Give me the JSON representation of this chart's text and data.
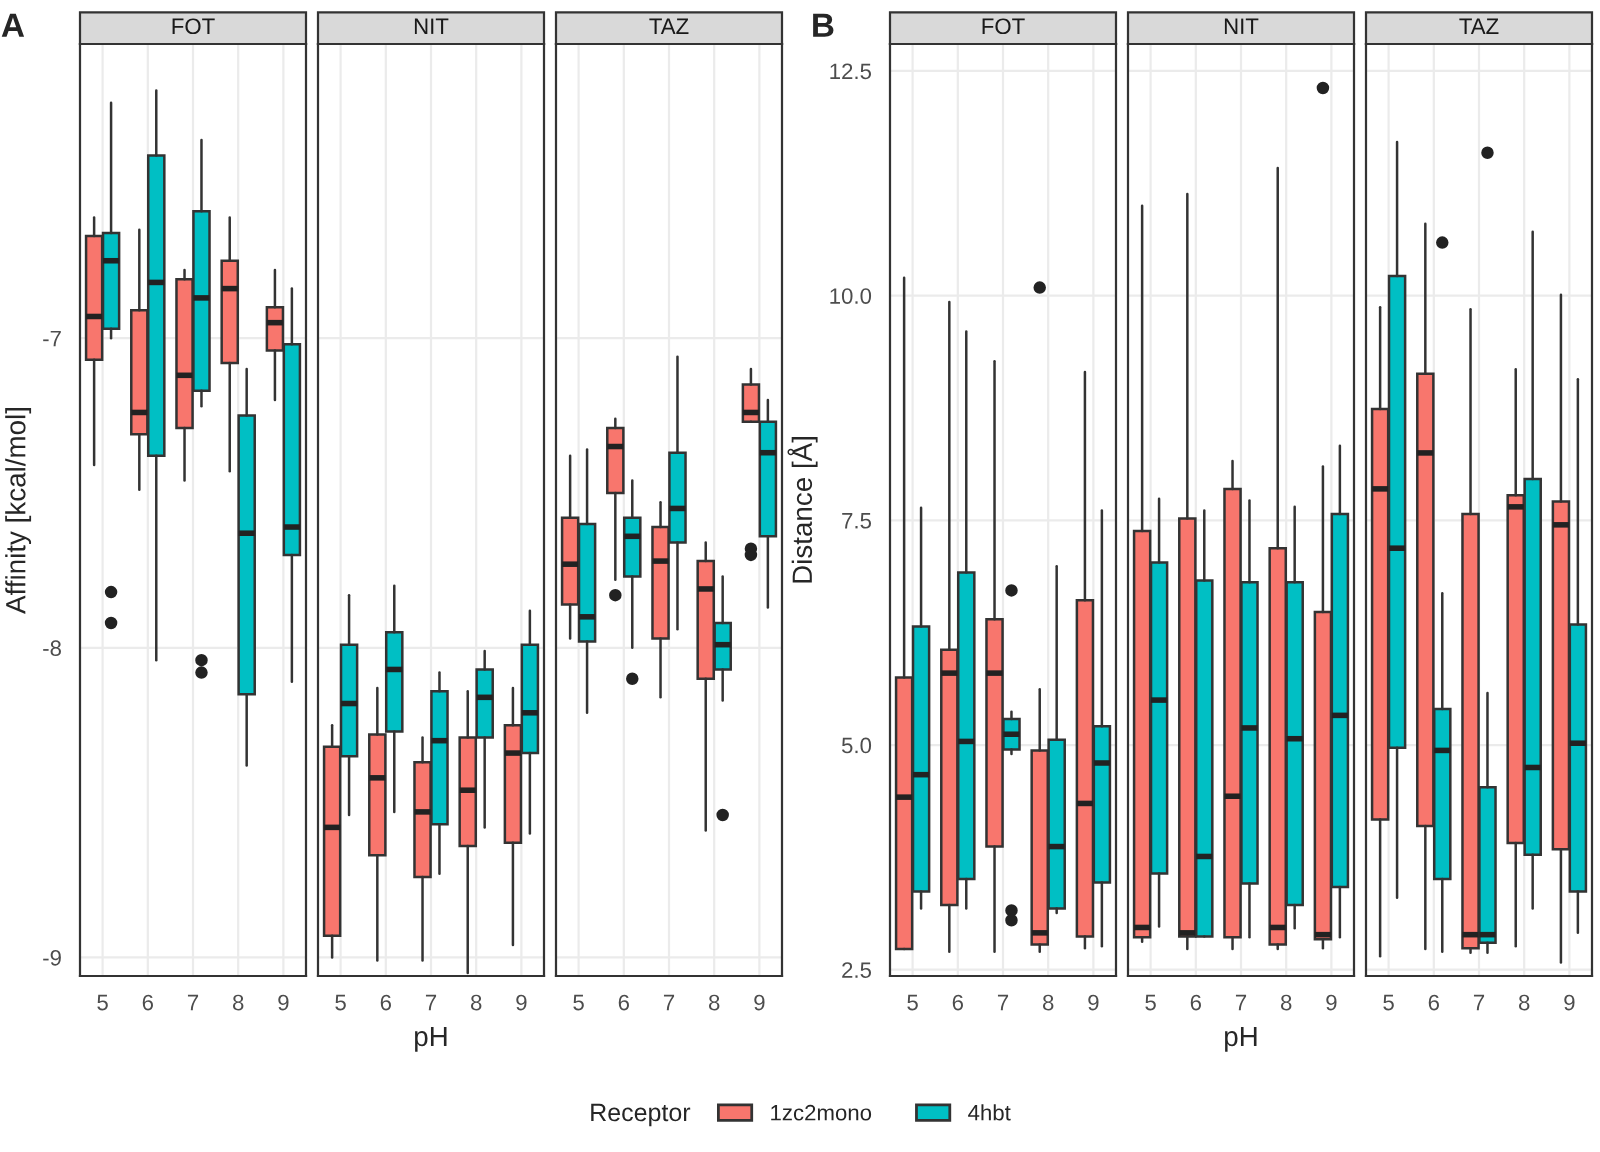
{
  "chart_data": [
    {
      "type": "box",
      "title": "FOT",
      "ylabel": "Affinity [kcal/mol]",
      "annotations": [
        "A"
      ],
      "legend": "bottom",
      "legend_title": "Receptor",
      "grid": true,
      "categories": [
        "5",
        "6",
        "7",
        "8",
        "9"
      ],
      "ylim": [
        -9.06,
        -6.05
      ],
      "yticks": [
        -9,
        -8,
        -7
      ],
      "series": [
        {
          "name": "1zc2mono",
          "color": "#f8766d",
          "boxes": [
            {
              "low": -7.41,
              "q1": -7.07,
              "median": -6.93,
              "q3": -6.67,
              "high": -6.61
            },
            {
              "low": -7.49,
              "q1": -7.31,
              "median": -7.24,
              "q3": -6.91,
              "high": -6.65
            },
            {
              "low": -7.46,
              "q1": -7.29,
              "median": -7.12,
              "q3": -6.81,
              "high": -6.78
            },
            {
              "low": -7.43,
              "q1": -7.08,
              "median": -6.84,
              "q3": -6.75,
              "high": -6.61
            },
            {
              "low": -7.2,
              "q1": -7.04,
              "median": -6.95,
              "q3": -6.9,
              "high": -6.78
            }
          ]
        },
        {
          "name": "4hbt",
          "color": "#00bfc4",
          "boxes": [
            {
              "low": -7.0,
              "q1": -6.97,
              "median": -6.75,
              "q3": -6.66,
              "high": -6.24,
              "outliers": [
                -7.82,
                -7.92
              ]
            },
            {
              "low": -8.04,
              "q1": -7.38,
              "median": -6.82,
              "q3": -6.41,
              "high": -6.2
            },
            {
              "low": -7.22,
              "q1": -7.17,
              "median": -6.87,
              "q3": -6.59,
              "high": -6.36,
              "outliers": [
                -8.04,
                -8.08
              ]
            },
            {
              "low": -8.38,
              "q1": -8.15,
              "median": -7.63,
              "q3": -7.25,
              "high": -7.1
            },
            {
              "low": -8.11,
              "q1": -7.7,
              "median": -7.61,
              "q3": -7.02,
              "high": -6.84
            }
          ]
        }
      ]
    },
    {
      "type": "box",
      "title": "NIT",
      "xlabel": "pH",
      "tick_labels": "x",
      "grid": true,
      "categories": [
        "5",
        "6",
        "7",
        "8",
        "9"
      ],
      "ylim": [
        -9.06,
        -6.05
      ],
      "yticks": [
        -9,
        -8,
        -7
      ],
      "series": [
        {
          "name": "1zc2mono",
          "color": "#f8766d",
          "boxes": [
            {
              "low": -9.0,
              "q1": -8.93,
              "median": -8.58,
              "q3": -8.32,
              "high": -8.25
            },
            {
              "low": -9.01,
              "q1": -8.67,
              "median": -8.42,
              "q3": -8.28,
              "high": -8.13
            },
            {
              "low": -9.01,
              "q1": -8.74,
              "median": -8.53,
              "q3": -8.37,
              "high": -8.29
            },
            {
              "low": -9.05,
              "q1": -8.64,
              "median": -8.46,
              "q3": -8.29,
              "high": -8.14
            },
            {
              "low": -8.96,
              "q1": -8.63,
              "median": -8.34,
              "q3": -8.25,
              "high": -8.13
            }
          ]
        },
        {
          "name": "4hbt",
          "color": "#00bfc4",
          "boxes": [
            {
              "low": -8.54,
              "q1": -8.35,
              "median": -8.18,
              "q3": -7.99,
              "high": -7.83
            },
            {
              "low": -8.53,
              "q1": -8.27,
              "median": -8.07,
              "q3": -7.95,
              "high": -7.8
            },
            {
              "low": -8.73,
              "q1": -8.57,
              "median": -8.3,
              "q3": -8.14,
              "high": -8.08
            },
            {
              "low": -8.58,
              "q1": -8.29,
              "median": -8.16,
              "q3": -8.07,
              "high": -8.01
            },
            {
              "low": -8.6,
              "q1": -8.34,
              "median": -8.21,
              "q3": -7.99,
              "high": -7.88
            }
          ]
        }
      ]
    },
    {
      "type": "box",
      "title": "TAZ",
      "tick_labels": "x",
      "grid": true,
      "categories": [
        "5",
        "6",
        "7",
        "8",
        "9"
      ],
      "ylim": [
        -9.06,
        -6.05
      ],
      "yticks": [
        -9,
        -8,
        -7
      ],
      "series": [
        {
          "name": "1zc2mono",
          "color": "#f8766d",
          "boxes": [
            {
              "low": -7.97,
              "q1": -7.86,
              "median": -7.73,
              "q3": -7.58,
              "high": -7.38
            },
            {
              "low": -7.78,
              "q1": -7.5,
              "median": -7.35,
              "q3": -7.29,
              "high": -7.26,
              "outliers": [
                -7.83
              ]
            },
            {
              "low": -8.16,
              "q1": -7.97,
              "median": -7.72,
              "q3": -7.61,
              "high": -7.53
            },
            {
              "low": -8.59,
              "q1": -8.1,
              "median": -7.81,
              "q3": -7.72,
              "high": -7.66
            },
            {
              "low": -7.27,
              "q1": -7.27,
              "median": -7.24,
              "q3": -7.15,
              "high": -7.1,
              "outliers": [
                -7.68,
                -7.7
              ]
            }
          ]
        },
        {
          "name": "4hbt",
          "color": "#00bfc4",
          "boxes": [
            {
              "low": -8.21,
              "q1": -7.98,
              "median": -7.9,
              "q3": -7.6,
              "high": -7.36
            },
            {
              "low": -8.0,
              "q1": -7.77,
              "median": -7.64,
              "q3": -7.58,
              "high": -7.46,
              "outliers": [
                -8.1
              ]
            },
            {
              "low": -7.94,
              "q1": -7.66,
              "median": -7.55,
              "q3": -7.37,
              "high": -7.06
            },
            {
              "low": -8.17,
              "q1": -8.07,
              "median": -7.99,
              "q3": -7.92,
              "high": -7.77,
              "outliers": [
                -8.54
              ]
            },
            {
              "low": -7.87,
              "q1": -7.64,
              "median": -7.37,
              "q3": -7.27,
              "high": -7.2
            }
          ]
        }
      ]
    },
    {
      "type": "box",
      "title": "FOT",
      "ylabel": "Distance [Å]",
      "annotations": [
        "B"
      ],
      "grid": true,
      "categories": [
        "5",
        "6",
        "7",
        "8",
        "9"
      ],
      "ylim": [
        2.43,
        12.8
      ],
      "yticks": [
        {
          "value": 2.5,
          "label": "2.5"
        },
        {
          "value": 5,
          "label": "5.0"
        },
        {
          "value": 7.5,
          "label": "7.5"
        },
        {
          "value": 10,
          "label": "10.0"
        },
        {
          "value": 12.5,
          "label": "12.5"
        }
      ],
      "series": [
        {
          "name": "1zc2mono",
          "color": "#f8766d",
          "boxes": [
            {
              "low": 2.73,
              "q1": 2.73,
              "median": 4.42,
              "q3": 5.75,
              "high": 10.2
            },
            {
              "low": 2.7,
              "q1": 3.22,
              "median": 5.8,
              "q3": 6.06,
              "high": 9.93
            },
            {
              "low": 2.7,
              "q1": 3.87,
              "median": 5.8,
              "q3": 6.4,
              "high": 9.27
            },
            {
              "low": 2.7,
              "q1": 2.78,
              "median": 2.91,
              "q3": 4.94,
              "high": 5.62,
              "outliers": [
                10.09
              ]
            },
            {
              "low": 2.74,
              "q1": 2.87,
              "median": 4.35,
              "q3": 6.61,
              "high": 9.15
            }
          ]
        },
        {
          "name": "4hbt",
          "color": "#00bfc4",
          "boxes": [
            {
              "low": 3.18,
              "q1": 3.37,
              "median": 4.67,
              "q3": 6.32,
              "high": 7.64
            },
            {
              "low": 3.18,
              "q1": 3.51,
              "median": 5.04,
              "q3": 6.92,
              "high": 9.6
            },
            {
              "low": 4.9,
              "q1": 4.95,
              "median": 5.12,
              "q3": 5.29,
              "high": 5.37,
              "outliers": [
                6.72,
                3.16,
                3.05
              ]
            },
            {
              "low": 3.13,
              "q1": 3.18,
              "median": 3.87,
              "q3": 5.06,
              "high": 6.99
            },
            {
              "low": 2.76,
              "q1": 3.47,
              "median": 4.8,
              "q3": 5.21,
              "high": 7.61
            }
          ]
        }
      ]
    },
    {
      "type": "box",
      "title": "NIT",
      "xlabel": "pH",
      "tick_labels": "x",
      "grid": true,
      "categories": [
        "5",
        "6",
        "7",
        "8",
        "9"
      ],
      "ylim": [
        2.43,
        12.8
      ],
      "yticks": [
        2.5,
        5,
        7.5,
        10,
        12.5
      ],
      "series": [
        {
          "name": "1zc2mono",
          "color": "#f8766d",
          "boxes": [
            {
              "low": 2.81,
              "q1": 2.86,
              "median": 2.97,
              "q3": 7.38,
              "high": 11.0
            },
            {
              "low": 2.73,
              "q1": 2.87,
              "median": 2.91,
              "q3": 7.52,
              "high": 11.13
            },
            {
              "low": 2.73,
              "q1": 2.86,
              "median": 4.43,
              "q3": 7.85,
              "high": 8.16
            },
            {
              "low": 2.73,
              "q1": 2.78,
              "median": 2.97,
              "q3": 7.19,
              "high": 11.42
            },
            {
              "low": 2.74,
              "q1": 2.84,
              "median": 2.89,
              "q3": 6.48,
              "high": 8.1,
              "outliers": [
                12.31
              ]
            }
          ]
        },
        {
          "name": "4hbt",
          "color": "#00bfc4",
          "boxes": [
            {
              "low": 2.98,
              "q1": 3.57,
              "median": 5.5,
              "q3": 7.03,
              "high": 7.74
            },
            {
              "low": 2.87,
              "q1": 2.87,
              "median": 3.76,
              "q3": 6.83,
              "high": 7.61
            },
            {
              "low": 2.86,
              "q1": 3.46,
              "median": 5.19,
              "q3": 6.81,
              "high": 7.72
            },
            {
              "low": 2.96,
              "q1": 3.22,
              "median": 5.07,
              "q3": 6.81,
              "high": 7.65
            },
            {
              "low": 2.86,
              "q1": 3.42,
              "median": 5.33,
              "q3": 7.57,
              "high": 8.33
            }
          ]
        }
      ]
    },
    {
      "type": "box",
      "title": "TAZ",
      "tick_labels": "x",
      "grid": true,
      "categories": [
        "5",
        "6",
        "7",
        "8",
        "9"
      ],
      "ylim": [
        2.43,
        12.8
      ],
      "yticks": [
        2.5,
        5,
        7.5,
        10,
        12.5
      ],
      "series": [
        {
          "name": "1zc2mono",
          "color": "#f8766d",
          "boxes": [
            {
              "low": 2.65,
              "q1": 4.17,
              "median": 7.85,
              "q3": 8.74,
              "high": 9.87
            },
            {
              "low": 2.73,
              "q1": 4.1,
              "median": 8.25,
              "q3": 9.13,
              "high": 10.8
            },
            {
              "low": 2.69,
              "q1": 2.74,
              "median": 2.89,
              "q3": 7.57,
              "high": 9.85
            },
            {
              "low": 2.76,
              "q1": 3.91,
              "median": 7.65,
              "q3": 7.78,
              "high": 9.18
            },
            {
              "low": 2.58,
              "q1": 3.84,
              "median": 7.45,
              "q3": 7.71,
              "high": 10.01
            }
          ]
        },
        {
          "name": "4hbt",
          "color": "#00bfc4",
          "boxes": [
            {
              "low": 3.3,
              "q1": 4.97,
              "median": 7.19,
              "q3": 10.22,
              "high": 11.71
            },
            {
              "low": 2.7,
              "q1": 3.51,
              "median": 4.94,
              "q3": 5.4,
              "high": 6.69,
              "outliers": [
                10.59
              ]
            },
            {
              "low": 2.69,
              "q1": 2.8,
              "median": 2.89,
              "q3": 4.53,
              "high": 5.58,
              "outliers": [
                11.59
              ]
            },
            {
              "low": 3.18,
              "q1": 3.78,
              "median": 4.75,
              "q3": 7.96,
              "high": 10.71
            },
            {
              "low": 2.91,
              "q1": 3.37,
              "median": 5.02,
              "q3": 6.34,
              "high": 9.07
            }
          ]
        }
      ]
    }
  ]
}
